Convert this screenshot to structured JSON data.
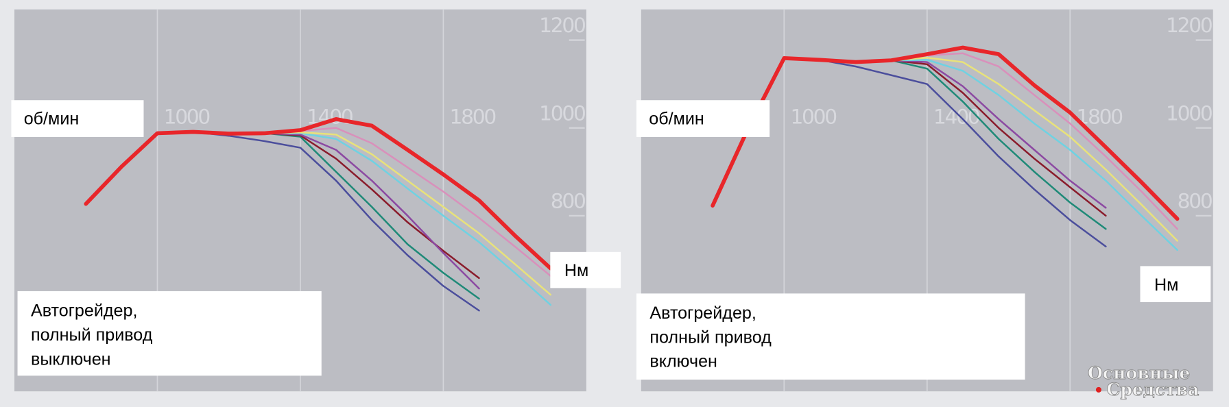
{
  "chart_data": [
    {
      "type": "line",
      "x_label": "об/мин",
      "y_label": "Нм",
      "annotation": [
        "Автогрейдер,",
        "полный привод",
        "выключен"
      ],
      "x": [
        800,
        900,
        1000,
        1100,
        1200,
        1300,
        1400,
        1500,
        1600,
        1700,
        1800,
        1900,
        2000,
        2100
      ],
      "xlim": [
        600,
        2200
      ],
      "xticks": [
        1000,
        1400,
        1800
      ],
      "ylim": [
        400,
        1270
      ],
      "yticks": [
        800,
        1000,
        1200
      ],
      "grid": true,
      "series": [
        {
          "color": "#4b4e9c",
          "values": [
            827,
            912,
            988,
            991,
            982,
            970,
            955,
            880,
            790,
            710,
            640,
            584,
            null,
            null
          ]
        },
        {
          "color": "#1f8a78",
          "values": [
            827,
            912,
            988,
            991,
            987,
            988,
            980,
            900,
            820,
            735,
            670,
            611,
            null,
            null
          ]
        },
        {
          "color": "#8a1c2c",
          "values": [
            827,
            912,
            988,
            991,
            987,
            988,
            983,
            930,
            860,
            785,
            720,
            658,
            null,
            null
          ]
        },
        {
          "color": "#8c4aa2",
          "values": [
            827,
            912,
            988,
            991,
            987,
            988,
            985,
            950,
            880,
            800,
            715,
            634,
            null,
            null
          ]
        },
        {
          "color": "#6fd2e2",
          "values": [
            827,
            912,
            988,
            991,
            987,
            988,
            988,
            975,
            925,
            862,
            800,
            740,
            670,
            597
          ]
        },
        {
          "color": "#e8e27a",
          "values": [
            827,
            912,
            988,
            991,
            987,
            988,
            990,
            985,
            940,
            880,
            820,
            760,
            690,
            620
          ]
        },
        {
          "color": "#d990bb",
          "values": [
            827,
            912,
            988,
            991,
            987,
            988,
            993,
            1000,
            965,
            910,
            855,
            795,
            730,
            663
          ]
        },
        {
          "color": "#e8262a",
          "values": [
            827,
            912,
            988,
            991,
            987,
            988,
            995,
            1020,
            1005,
            950,
            894,
            835,
            755,
            680
          ]
        }
      ]
    },
    {
      "type": "line",
      "x_label": "об/мин",
      "y_label": "Нм",
      "annotation": [
        "Автогрейдер,",
        "полный привод",
        "включен"
      ],
      "x": [
        800,
        900,
        1000,
        1100,
        1200,
        1300,
        1400,
        1500,
        1600,
        1700,
        1800,
        1900,
        2000,
        2100
      ],
      "xlim": [
        600,
        2200
      ],
      "xticks": [
        1000,
        1400,
        1800
      ],
      "ylim": [
        400,
        1270
      ],
      "yticks": [
        800,
        1000,
        1200
      ],
      "grid": true,
      "series": [
        {
          "color": "#4b4e9c",
          "values": [
            823,
            1000,
            1159,
            1155,
            1140,
            1120,
            1100,
            1020,
            935,
            860,
            790,
            730,
            null,
            null
          ]
        },
        {
          "color": "#1f8a78",
          "values": [
            823,
            1000,
            1159,
            1155,
            1150,
            1154,
            1135,
            1060,
            975,
            900,
            830,
            770,
            null,
            null
          ]
        },
        {
          "color": "#8a1c2c",
          "values": [
            823,
            1000,
            1159,
            1155,
            1150,
            1154,
            1145,
            1080,
            1000,
            930,
            865,
            800,
            null,
            null
          ]
        },
        {
          "color": "#8c4aa2",
          "values": [
            823,
            1000,
            1159,
            1155,
            1150,
            1154,
            1150,
            1095,
            1020,
            950,
            880,
            818,
            null,
            null
          ]
        },
        {
          "color": "#6fd2e2",
          "values": [
            823,
            1000,
            1159,
            1155,
            1150,
            1154,
            1155,
            1130,
            1075,
            1010,
            950,
            880,
            800,
            722
          ]
        },
        {
          "color": "#e8e27a",
          "values": [
            823,
            1000,
            1159,
            1155,
            1150,
            1154,
            1160,
            1150,
            1100,
            1040,
            980,
            905,
            825,
            743
          ]
        },
        {
          "color": "#d990bb",
          "values": [
            823,
            1000,
            1159,
            1155,
            1150,
            1154,
            1165,
            1170,
            1140,
            1075,
            1010,
            935,
            855,
            770
          ]
        },
        {
          "color": "#e8262a",
          "values": [
            823,
            1000,
            1159,
            1155,
            1150,
            1154,
            1168,
            1183,
            1168,
            1097,
            1035,
            956,
            876,
            793
          ]
        }
      ]
    }
  ],
  "watermark": [
    "Основные",
    "Средства"
  ]
}
